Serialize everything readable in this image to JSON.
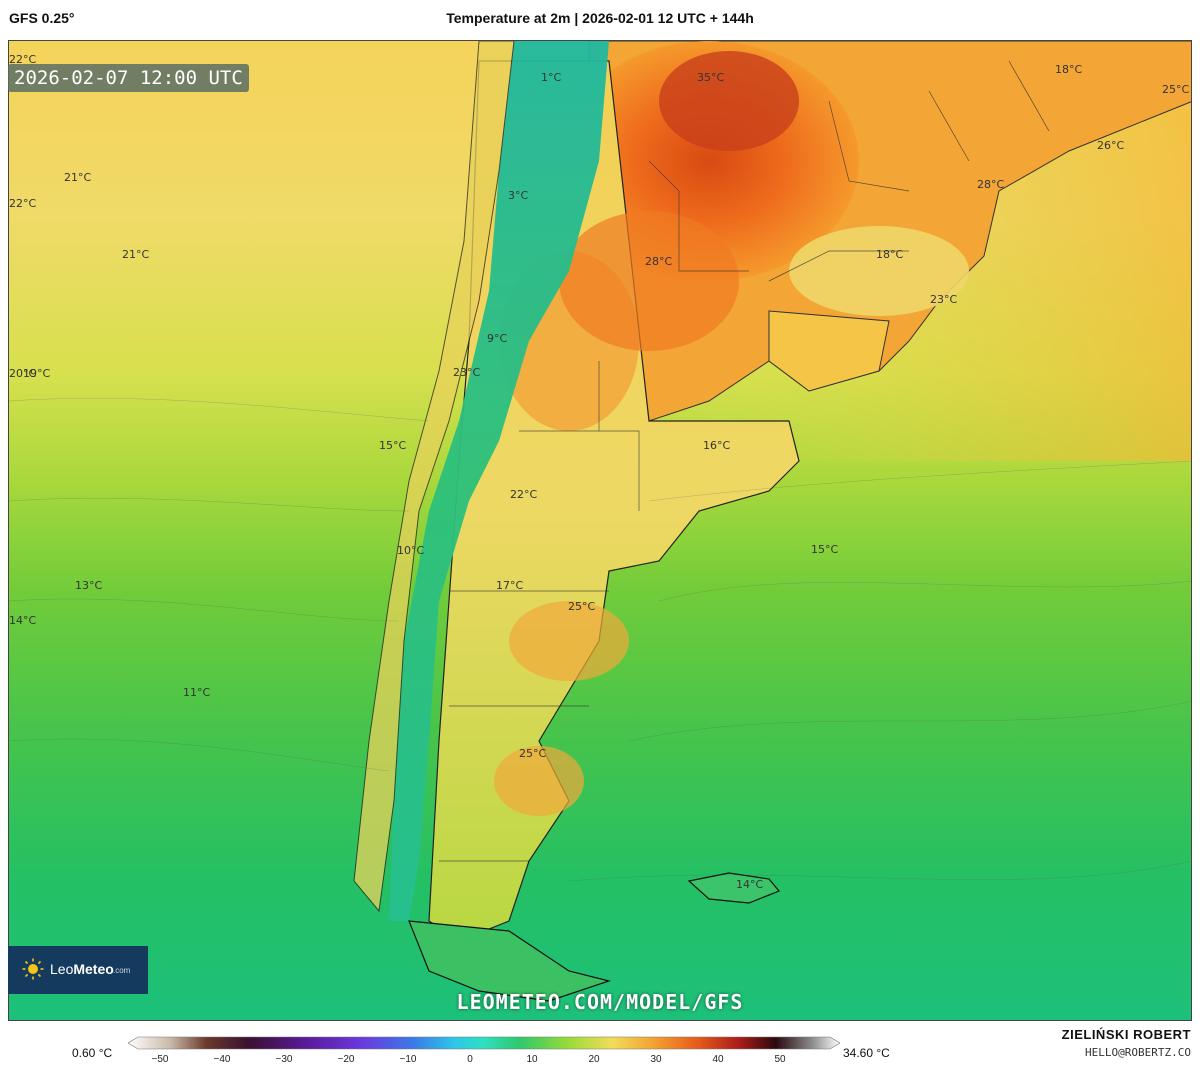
{
  "header": {
    "model": "GFS 0.25°",
    "title": "Temperature at 2m | 2026-02-01 12 UTC + 144h"
  },
  "valid_time": "2026-02-07 12:00 UTC",
  "temperature_labels": [
    {
      "text": "22°C"
    },
    {
      "text": "1°C"
    },
    {
      "text": "35°C"
    },
    {
      "text": "18°C"
    },
    {
      "text": "25°C"
    },
    {
      "text": "26°C"
    },
    {
      "text": "21°C"
    },
    {
      "text": "22°C"
    },
    {
      "text": "3°C"
    },
    {
      "text": "28°C"
    },
    {
      "text": "21°C"
    },
    {
      "text": "28°C"
    },
    {
      "text": "18°C"
    },
    {
      "text": "23°C"
    },
    {
      "text": "9°C"
    },
    {
      "text": "20°C"
    },
    {
      "text": "19°C"
    },
    {
      "text": "23°C"
    },
    {
      "text": "16°C"
    },
    {
      "text": "15°C"
    },
    {
      "text": "22°C"
    },
    {
      "text": "10°C"
    },
    {
      "text": "15°C"
    },
    {
      "text": "13°C"
    },
    {
      "text": "17°C"
    },
    {
      "text": "25°C"
    },
    {
      "text": "14°C"
    },
    {
      "text": "11°C"
    },
    {
      "text": "25°C"
    },
    {
      "text": "14°C"
    }
  ],
  "branding": {
    "logo_light": "Leo",
    "logo_bold": "Meteo",
    "logo_suffix": ".com",
    "url": "LEOMETEO.COM/MODEL/GFS"
  },
  "colorbar": {
    "min_label": "0.60 °C",
    "max_label": "34.60 °C",
    "ticks": [
      "−50",
      "−40",
      "−30",
      "−20",
      "−10",
      "0",
      "10",
      "20",
      "30",
      "40",
      "50"
    ]
  },
  "footer": {
    "author": "ZIELIŃSKI ROBERT",
    "email": "HELLO@ROBERTZ.CO"
  },
  "colors": {
    "ocean_south": "#22c76a",
    "ocean_mid": "#8fd83a",
    "ocean_north": "#f2d55a",
    "land_hot": "#f06a1a",
    "land_warm": "#f3a534",
    "andes": "#1fb87a"
  }
}
